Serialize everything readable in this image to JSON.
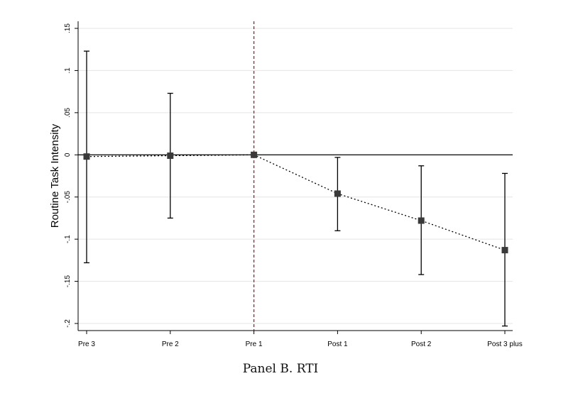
{
  "chart_data": {
    "type": "scatter",
    "ylabel": "Routine Task Intensity",
    "xlabel": "",
    "categories": [
      "Pre 3",
      "Pre 2",
      "Pre 1",
      "Post 1",
      "Post 2",
      "Post 3 plus"
    ],
    "series": [
      {
        "values": [
          -0.002,
          -0.001,
          0.0,
          -0.046,
          -0.078,
          -0.113
        ],
        "ci_low": [
          -0.128,
          -0.075,
          0.0,
          -0.09,
          -0.142,
          -0.203
        ],
        "ci_high": [
          0.123,
          0.073,
          0.0,
          -0.003,
          -0.013,
          -0.022
        ]
      }
    ],
    "ylim": [
      -0.2,
      0.15
    ],
    "yticks": [
      -0.2,
      -0.15,
      -0.1,
      -0.05,
      0,
      0.05,
      0.1,
      0.15
    ],
    "ytick_labels": [
      "-.2",
      "-.15",
      "-.1",
      "-.05",
      "0",
      ".05",
      ".1",
      ".15"
    ],
    "reference_line_x": "Pre 1",
    "zero_line": 0,
    "grid": true
  },
  "caption": "Panel B. RTI",
  "colors": {
    "marker": "#3a3a3a",
    "vline": "#cc0000",
    "grid": "#e4e4e4",
    "axis": "#000000"
  }
}
